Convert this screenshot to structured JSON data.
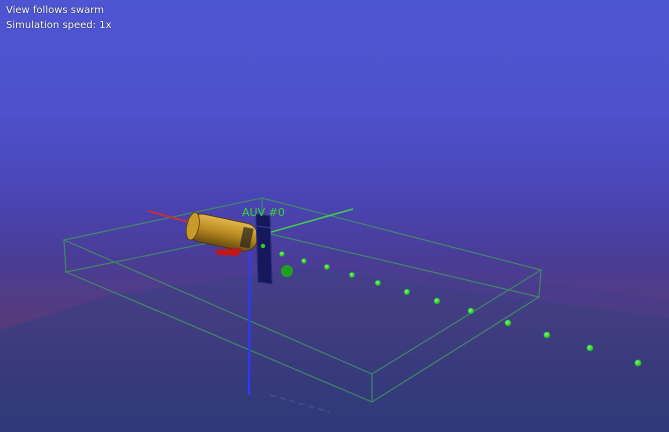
{
  "hud": {
    "view_mode": "View follows swarm",
    "sim_speed": "Simulation speed: 1x"
  },
  "vehicle": {
    "label": "AUV #0"
  },
  "colors": {
    "sky_top": "#4e55d3",
    "water_bottom": "#3a2d64",
    "bounding_box": "#3f8f64",
    "waypoint": "#2bd12b",
    "axis_x": "#e02828",
    "axis_y": "#3fcf4a",
    "axis_z": "#2a3cff",
    "hull": "#c79a2a",
    "panel": "#15185a"
  },
  "icons": {
    "vehicle_body": "auv-hull-icon",
    "solar_panel": "auv-fin-icon"
  }
}
